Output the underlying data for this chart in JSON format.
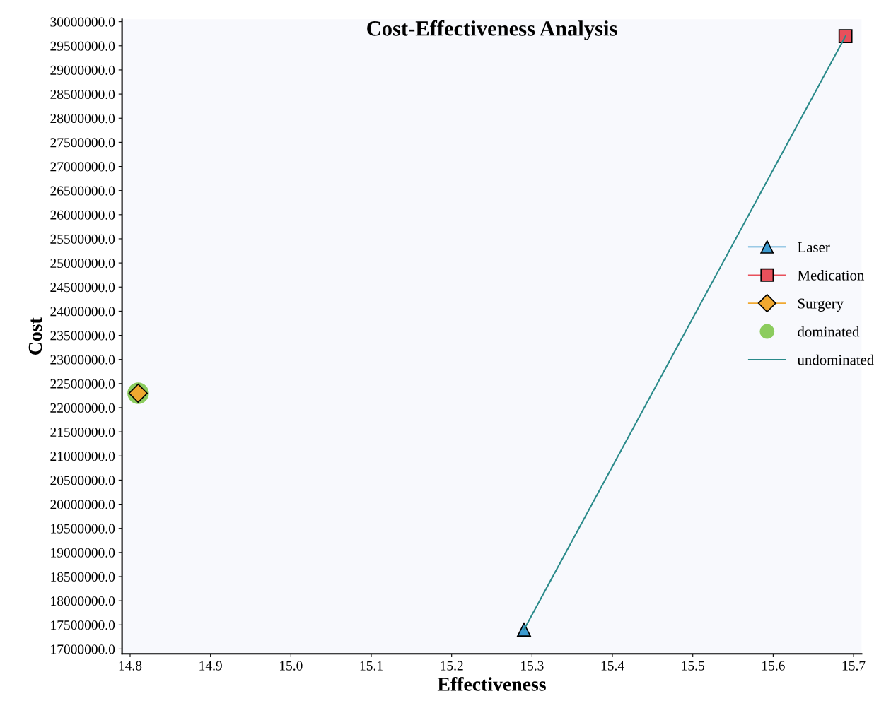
{
  "chart_data": {
    "type": "line",
    "title": "Cost-Effectiveness Analysis",
    "xlabel": "Effectiveness",
    "ylabel": "Cost",
    "xlim": [
      14.79,
      15.71
    ],
    "ylim": [
      16900000,
      30050000
    ],
    "xticks": [
      {
        "value": 14.8,
        "label": "14.8"
      },
      {
        "value": 14.9,
        "label": "14.9"
      },
      {
        "value": 15.0,
        "label": "15.0"
      },
      {
        "value": 15.1,
        "label": "15.1"
      },
      {
        "value": 15.2,
        "label": "15.2"
      },
      {
        "value": 15.3,
        "label": "15.3"
      },
      {
        "value": 15.4,
        "label": "15.4"
      },
      {
        "value": 15.5,
        "label": "15.5"
      },
      {
        "value": 15.6,
        "label": "15.6"
      },
      {
        "value": 15.7,
        "label": "15.7"
      }
    ],
    "yticks": [
      {
        "value": 17000000,
        "label": "17000000.0"
      },
      {
        "value": 17500000,
        "label": "17500000.0"
      },
      {
        "value": 18000000,
        "label": "18000000.0"
      },
      {
        "value": 18500000,
        "label": "18500000.0"
      },
      {
        "value": 19000000,
        "label": "19000000.0"
      },
      {
        "value": 19500000,
        "label": "19500000.0"
      },
      {
        "value": 20000000,
        "label": "20000000.0"
      },
      {
        "value": 20500000,
        "label": "20500000.0"
      },
      {
        "value": 21000000,
        "label": "21000000.0"
      },
      {
        "value": 21500000,
        "label": "21500000.0"
      },
      {
        "value": 22000000,
        "label": "22000000.0"
      },
      {
        "value": 22500000,
        "label": "22500000.0"
      },
      {
        "value": 23000000,
        "label": "23000000.0"
      },
      {
        "value": 23500000,
        "label": "23500000.0"
      },
      {
        "value": 24000000,
        "label": "24000000.0"
      },
      {
        "value": 24500000,
        "label": "24500000.0"
      },
      {
        "value": 25000000,
        "label": "25000000.0"
      },
      {
        "value": 25500000,
        "label": "25500000.0"
      },
      {
        "value": 26000000,
        "label": "26000000.0"
      },
      {
        "value": 26500000,
        "label": "26500000.0"
      },
      {
        "value": 27000000,
        "label": "27000000.0"
      },
      {
        "value": 27500000,
        "label": "27500000.0"
      },
      {
        "value": 28000000,
        "label": "28000000.0"
      },
      {
        "value": 28500000,
        "label": "28500000.0"
      },
      {
        "value": 29000000,
        "label": "29000000.0"
      },
      {
        "value": 29500000,
        "label": "29500000.0"
      },
      {
        "value": 30000000,
        "label": "30000000.0"
      }
    ],
    "grid": false,
    "legend": "right",
    "series": [
      {
        "name": "Laser",
        "color": "#3d9bd0",
        "marker": "triangle",
        "x": [
          15.29
        ],
        "values": [
          17400000
        ]
      },
      {
        "name": "Medication",
        "color": "#e8505b",
        "marker": "square",
        "x": [
          15.69
        ],
        "values": [
          29700000
        ]
      },
      {
        "name": "Surgery",
        "color": "#f0a830",
        "marker": "diamond",
        "x": [
          14.81
        ],
        "values": [
          22300000
        ]
      },
      {
        "name": "dominated",
        "type": "scatter",
        "color": "#8ccc5e",
        "marker": "circle",
        "x": [
          14.81
        ],
        "values": [
          22300000
        ]
      },
      {
        "name": "undominated",
        "color": "#2a8a8a",
        "marker": "none",
        "x": [
          15.29,
          15.69
        ],
        "values": [
          17400000,
          29700000
        ]
      }
    ]
  }
}
